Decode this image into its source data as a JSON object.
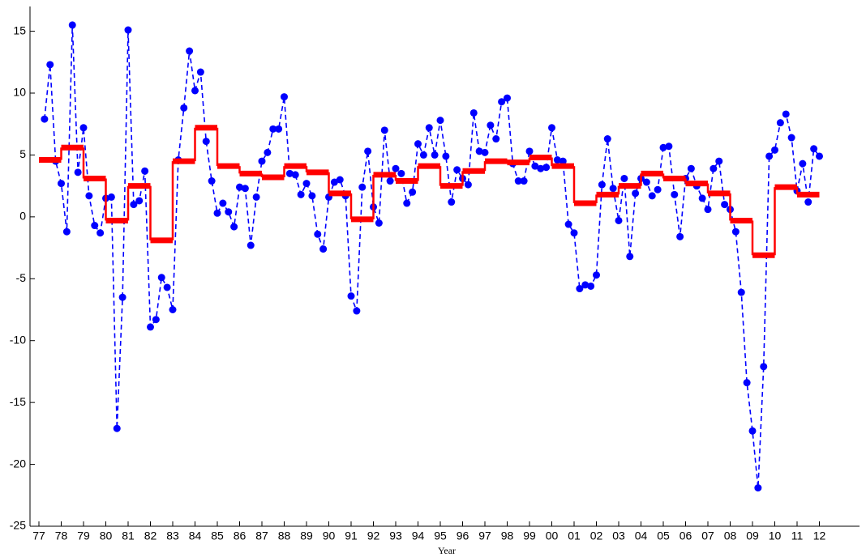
{
  "chart_data": {
    "type": "line",
    "xlabel": "Year",
    "xlim": [
      1976.6,
      2013.8
    ],
    "ylim": [
      -25,
      17
    ],
    "yticks": [
      -25,
      -20,
      -15,
      -10,
      -5,
      0,
      5,
      10,
      15
    ],
    "xticks": [
      {
        "value": 1977,
        "label": "77"
      },
      {
        "value": 1978,
        "label": "78"
      },
      {
        "value": 1979,
        "label": "79"
      },
      {
        "value": 1980,
        "label": "80"
      },
      {
        "value": 1981,
        "label": "81"
      },
      {
        "value": 1982,
        "label": "82"
      },
      {
        "value": 1983,
        "label": "83"
      },
      {
        "value": 1984,
        "label": "84"
      },
      {
        "value": 1985,
        "label": "85"
      },
      {
        "value": 1986,
        "label": "86"
      },
      {
        "value": 1987,
        "label": "87"
      },
      {
        "value": 1988,
        "label": "88"
      },
      {
        "value": 1989,
        "label": "89"
      },
      {
        "value": 1990,
        "label": "90"
      },
      {
        "value": 1991,
        "label": "91"
      },
      {
        "value": 1992,
        "label": "92"
      },
      {
        "value": 1993,
        "label": "93"
      },
      {
        "value": 1994,
        "label": "94"
      },
      {
        "value": 1995,
        "label": "95"
      },
      {
        "value": 1996,
        "label": "96"
      },
      {
        "value": 1997,
        "label": "97"
      },
      {
        "value": 1998,
        "label": "98"
      },
      {
        "value": 1999,
        "label": "99"
      },
      {
        "value": 2000,
        "label": "00"
      },
      {
        "value": 2001,
        "label": "01"
      },
      {
        "value": 2002,
        "label": "02"
      },
      {
        "value": 2003,
        "label": "03"
      },
      {
        "value": 2004,
        "label": "04"
      },
      {
        "value": 2005,
        "label": "05"
      },
      {
        "value": 2006,
        "label": "06"
      },
      {
        "value": 2007,
        "label": "07"
      },
      {
        "value": 2008,
        "label": "08"
      },
      {
        "value": 2009,
        "label": "09"
      },
      {
        "value": 2010,
        "label": "10"
      },
      {
        "value": 2011,
        "label": "11"
      },
      {
        "value": 2012,
        "label": "12"
      }
    ],
    "grid": false,
    "series": [
      {
        "color": "#0000ff",
        "style": "dashed-markers",
        "x": [
          1977.25,
          1977.5,
          1977.75,
          1978,
          1978.25,
          1978.5,
          1978.75,
          1979,
          1979.25,
          1979.5,
          1979.75,
          1980,
          1980.25,
          1980.5,
          1980.75,
          1981,
          1981.25,
          1981.5,
          1981.75,
          1982,
          1982.25,
          1982.5,
          1982.75,
          1983,
          1983.25,
          1983.5,
          1983.75,
          1984,
          1984.25,
          1984.5,
          1984.75,
          1985,
          1985.25,
          1985.5,
          1985.75,
          1986,
          1986.25,
          1986.5,
          1986.75,
          1987,
          1987.25,
          1987.5,
          1987.75,
          1988,
          1988.25,
          1988.5,
          1988.75,
          1989,
          1989.25,
          1989.5,
          1989.75,
          1990,
          1990.25,
          1990.5,
          1990.75,
          1991,
          1991.25,
          1991.5,
          1991.75,
          1992,
          1992.25,
          1992.5,
          1992.75,
          1993,
          1993.25,
          1993.5,
          1993.75,
          1994,
          1994.25,
          1994.5,
          1994.75,
          1995,
          1995.25,
          1995.5,
          1995.75,
          1996,
          1996.25,
          1996.5,
          1996.75,
          1997,
          1997.25,
          1997.5,
          1997.75,
          1998,
          1998.25,
          1998.5,
          1998.75,
          1999,
          1999.25,
          1999.5,
          1999.75,
          2000,
          2000.25,
          2000.5,
          2000.75,
          2001,
          2001.25,
          2001.5,
          2001.75,
          2002,
          2002.25,
          2002.5,
          2002.75,
          2003,
          2003.25,
          2003.5,
          2003.75,
          2004,
          2004.25,
          2004.5,
          2004.75,
          2005,
          2005.25,
          2005.5,
          2005.75,
          2006,
          2006.25,
          2006.5,
          2006.75,
          2007,
          2007.25,
          2007.5,
          2007.75,
          2008,
          2008.25,
          2008.5,
          2008.75,
          2009,
          2009.25,
          2009.5,
          2009.75,
          2010,
          2010.25,
          2010.5,
          2010.75,
          2011,
          2011.25,
          2011.5,
          2011.75,
          2012
        ],
        "values": [
          7.9,
          12.3,
          4.5,
          2.7,
          -1.2,
          15.5,
          3.6,
          7.2,
          1.7,
          -0.7,
          -1.3,
          1.5,
          1.6,
          -17.1,
          -6.5,
          15.1,
          1.0,
          1.3,
          3.7,
          -8.9,
          -8.3,
          -4.9,
          -5.7,
          -7.5,
          4.6,
          8.8,
          13.4,
          10.2,
          11.7,
          6.1,
          2.9,
          0.3,
          1.1,
          0.4,
          -0.8,
          2.4,
          2.3,
          -2.3,
          1.6,
          4.5,
          5.2,
          7.1,
          7.1,
          9.7,
          3.5,
          3.4,
          1.8,
          2.7,
          1.7,
          -1.4,
          -2.6,
          1.6,
          2.8,
          3.0,
          1.7,
          -6.4,
          -7.6,
          2.4,
          5.3,
          0.8,
          -0.5,
          7.0,
          2.9,
          3.9,
          3.5,
          1.1,
          2.0,
          5.9,
          5.0,
          7.2,
          5.0,
          7.8,
          4.9,
          1.2,
          3.8,
          3.1,
          2.6,
          8.4,
          5.3,
          5.2,
          7.4,
          6.3,
          9.3,
          9.6,
          4.3,
          2.9,
          2.9,
          5.3,
          4.1,
          3.9,
          4.0,
          7.2,
          4.6,
          4.5,
          -0.6,
          -1.3,
          -5.8,
          -5.5,
          -5.6,
          -4.7,
          2.6,
          6.3,
          2.3,
          -0.3,
          3.1,
          -3.2,
          1.9,
          3.1,
          2.8,
          1.7,
          2.2,
          5.6,
          5.7,
          1.8,
          -1.6,
          3.1,
          3.9,
          2.5,
          1.5,
          0.6,
          3.9,
          4.5,
          1.0,
          0.6,
          -1.2,
          -6.1,
          -13.4,
          -17.3,
          -21.9,
          -12.1,
          4.9,
          5.4,
          7.6,
          8.3,
          6.4,
          2.1,
          4.3,
          1.2,
          5.5,
          4.9
        ]
      },
      {
        "color": "#ff0000",
        "style": "steps",
        "x": [
          1977,
          1978,
          1979,
          1980,
          1981,
          1982,
          1983,
          1984,
          1985,
          1986,
          1987,
          1988,
          1989,
          1990,
          1991,
          1992,
          1993,
          1994,
          1995,
          1996,
          1997,
          1998,
          1999,
          2000,
          2001,
          2002,
          2003,
          2004,
          2005,
          2006,
          2007,
          2008,
          2009,
          2010,
          2011
        ],
        "values": [
          4.6,
          5.6,
          3.1,
          -0.3,
          2.5,
          -1.9,
          4.5,
          7.2,
          4.1,
          3.5,
          3.2,
          4.1,
          3.6,
          1.9,
          -0.2,
          3.4,
          2.9,
          4.1,
          2.5,
          3.7,
          4.5,
          4.4,
          4.8,
          4.1,
          1.1,
          1.8,
          2.5,
          3.5,
          3.1,
          2.7,
          1.9,
          -0.3,
          -3.1,
          2.4,
          1.8
        ]
      }
    ]
  }
}
